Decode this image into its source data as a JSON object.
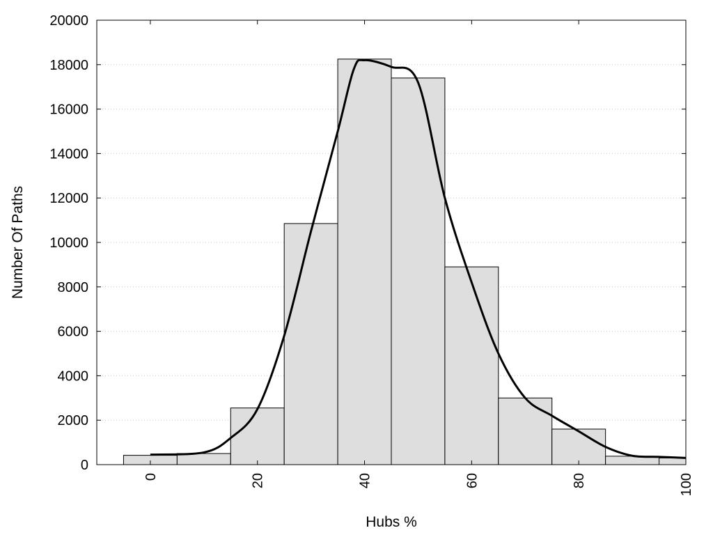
{
  "chart_data": {
    "type": "bar",
    "title": "",
    "xlabel": "Hubs %",
    "ylabel": "Number Of Paths",
    "xlim": [
      -10,
      100
    ],
    "ylim": [
      0,
      20000
    ],
    "x_ticks": [
      0,
      20,
      40,
      60,
      80,
      100
    ],
    "y_ticks": [
      0,
      2000,
      4000,
      6000,
      8000,
      10000,
      12000,
      14000,
      16000,
      18000,
      20000
    ],
    "grid": "horizontal dotted",
    "bins": [
      {
        "start": -5,
        "end": 5,
        "value": 420
      },
      {
        "start": 5,
        "end": 15,
        "value": 500
      },
      {
        "start": 15,
        "end": 25,
        "value": 2550
      },
      {
        "start": 25,
        "end": 35,
        "value": 10850
      },
      {
        "start": 35,
        "end": 45,
        "value": 18250
      },
      {
        "start": 45,
        "end": 55,
        "value": 17400
      },
      {
        "start": 55,
        "end": 65,
        "value": 8900
      },
      {
        "start": 65,
        "end": 75,
        "value": 3000
      },
      {
        "start": 75,
        "end": 85,
        "value": 1600
      },
      {
        "start": 85,
        "end": 95,
        "value": 380
      },
      {
        "start": 95,
        "end": 100,
        "value": 300
      }
    ],
    "curve": {
      "x": [
        0,
        10,
        15,
        20,
        25,
        30,
        35,
        38,
        40,
        45,
        50,
        55,
        60,
        65,
        70,
        75,
        80,
        85,
        90,
        95,
        100
      ],
      "y": [
        450,
        550,
        1200,
        2500,
        5800,
        10500,
        15000,
        17800,
        18200,
        17900,
        17200,
        12000,
        8200,
        5000,
        3000,
        2200,
        1500,
        800,
        400,
        350,
        300
      ]
    },
    "colors": {
      "bar_fill": "#dedede",
      "bar_stroke": "#000000",
      "curve": "#000000",
      "grid": "#c8c8c8"
    }
  }
}
